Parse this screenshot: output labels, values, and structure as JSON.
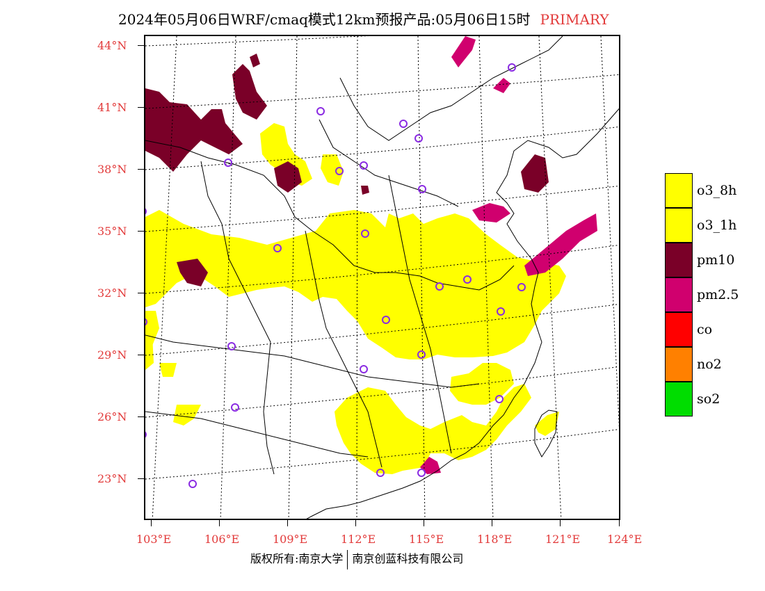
{
  "title": {
    "main": "2024年05月06日WRF/cmaq模式12km预报产品:05月06日15时",
    "tag": "PRIMARY"
  },
  "map": {
    "lat_labels": [
      "44°N",
      "41°N",
      "38°N",
      "35°N",
      "32°N",
      "29°N",
      "26°N",
      "23°N"
    ],
    "lon_labels": [
      "103°E",
      "106°E",
      "109°E",
      "112°E",
      "115°E",
      "118°E",
      "121°E",
      "124°E"
    ]
  },
  "legend": {
    "items": [
      {
        "label": "o3_8h",
        "color": "#ffff00"
      },
      {
        "label": "o3_1h",
        "color": "#ffff00"
      },
      {
        "label": "pm10",
        "color": "#7a0028"
      },
      {
        "label": "pm2.5",
        "color": "#d0006e"
      },
      {
        "label": "co",
        "color": "#ff0000"
      },
      {
        "label": "no2",
        "color": "#ff8000"
      },
      {
        "label": "so2",
        "color": "#00dd00"
      }
    ]
  },
  "footer": {
    "left": "版权所有:南京大学",
    "right": "南京创蓝科技有限公司"
  }
}
